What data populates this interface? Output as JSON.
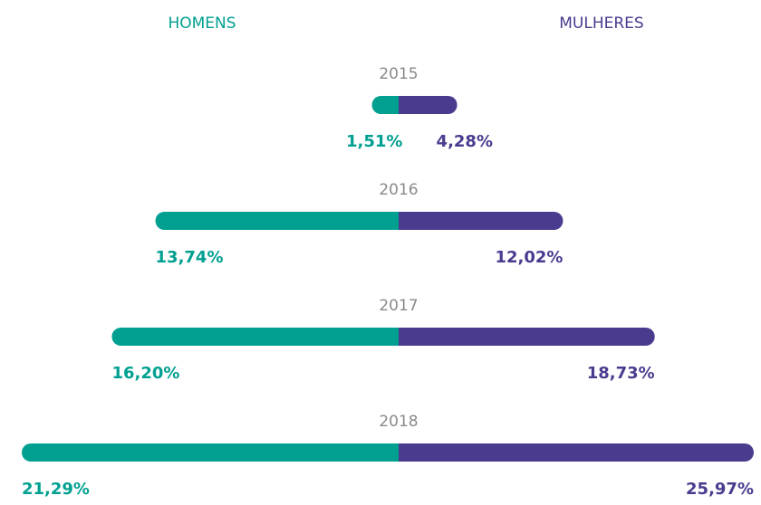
{
  "chart_data": {
    "type": "diverging-bar",
    "categories": [
      "2015",
      "2016",
      "2017",
      "2018"
    ],
    "series": [
      {
        "name": "HOMENS",
        "color": "#00a091",
        "values": [
          1.51,
          13.74,
          16.2,
          21.29
        ],
        "value_labels": [
          "1,51%",
          "13,74%",
          "16,20%",
          "21,29%"
        ]
      },
      {
        "name": "MULHERES",
        "color": "#4b3b8f",
        "values": [
          4.28,
          12.02,
          18.73,
          25.97
        ],
        "value_labels": [
          "4,28%",
          "12,02%",
          "18,73%",
          "25,97%"
        ]
      }
    ]
  }
}
